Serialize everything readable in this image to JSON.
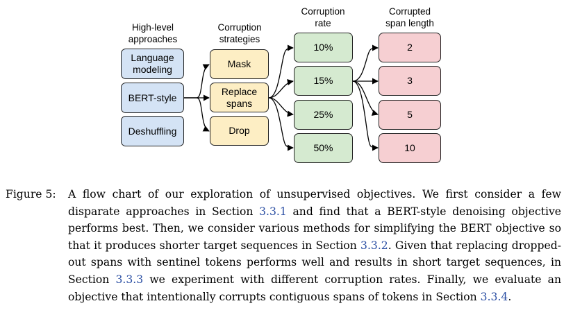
{
  "diagram": {
    "headers": {
      "approaches": "High-level\napproaches",
      "strategies": "Corruption\nstrategies",
      "rate": "Corruption\nrate",
      "span": "Corrupted\nspan length"
    },
    "approaches": [
      "Language\nmodeling",
      "BERT-style",
      "Deshuffling"
    ],
    "strategies": [
      "Mask",
      "Replace\nspans",
      "Drop"
    ],
    "rates": [
      "10%",
      "15%",
      "25%",
      "50%"
    ],
    "span_lengths": [
      "2",
      "3",
      "5",
      "10"
    ],
    "colors": {
      "approaches": "#d4e3f5",
      "strategies": "#fdeec4",
      "rates": "#d5ead0",
      "span_lengths": "#f6cfd2"
    }
  },
  "caption": {
    "label": "Figure 5:",
    "t1": "A flow chart of our exploration of unsupervised objectives. We first consider a few disparate approaches in Section ",
    "ref1": "3.3.1",
    "t2": " and find that a BERT-style denoising objective performs best. Then, we consider various methods for simplifying the BERT objective so that it produces shorter target sequences in Section ",
    "ref2": "3.3.2",
    "t3": ". Given that replacing dropped-out spans with sentinel tokens performs well and results in short target sequences, in Section ",
    "ref3": "3.3.3",
    "t4": " we experiment with different corruption rates. Finally, we evaluate an objective that intentionally corrupts contiguous spans of tokens in Section ",
    "ref4": "3.3.4",
    "t5": "."
  }
}
